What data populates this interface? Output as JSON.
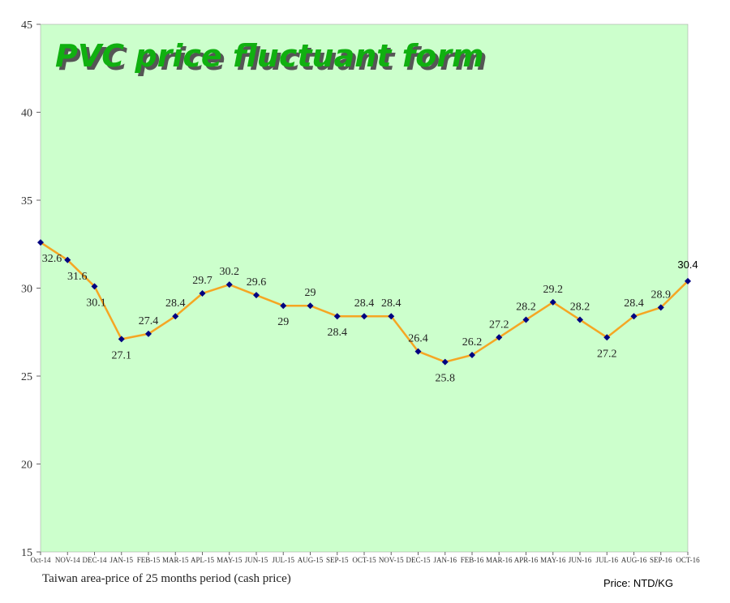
{
  "chart_data": {
    "type": "line",
    "title": "PVC price fluctuant form",
    "subtitle": "Taiwan area-price of 25 months period (cash price)",
    "unit_note": "Price: NTD/KG",
    "categories": [
      "Oct-14",
      "NOV-14",
      "DEC-14",
      "JAN-15",
      "FEB-15",
      "MAR-15",
      "APL-15",
      "MAY-15",
      "JUN-15",
      "JUL-15",
      "AUG-15",
      "SEP-15",
      "OCT-15",
      "NOV-15",
      "DEC-15",
      "JAN-16",
      "FEB-16",
      "MAR-16",
      "APR-16",
      "MAY-16",
      "JUN-16",
      "JUL-16",
      "AUG-16",
      "SEP-16",
      "OCT-16"
    ],
    "values": [
      32.6,
      31.6,
      30.1,
      27.1,
      27.4,
      28.4,
      29.7,
      30.2,
      29.6,
      29,
      29,
      28.4,
      28.4,
      28.4,
      26.4,
      25.8,
      26.2,
      27.2,
      28.2,
      29.2,
      28.2,
      27.2,
      28.4,
      28.9,
      30.4
    ],
    "ylim": [
      15,
      45
    ],
    "yticks": [
      15,
      20,
      25,
      30,
      35,
      40,
      45
    ],
    "grid": false,
    "colors": {
      "plot_background": "#ccffcc",
      "line": "#f5a623",
      "marker": "#000080",
      "title": "#10b010"
    }
  }
}
